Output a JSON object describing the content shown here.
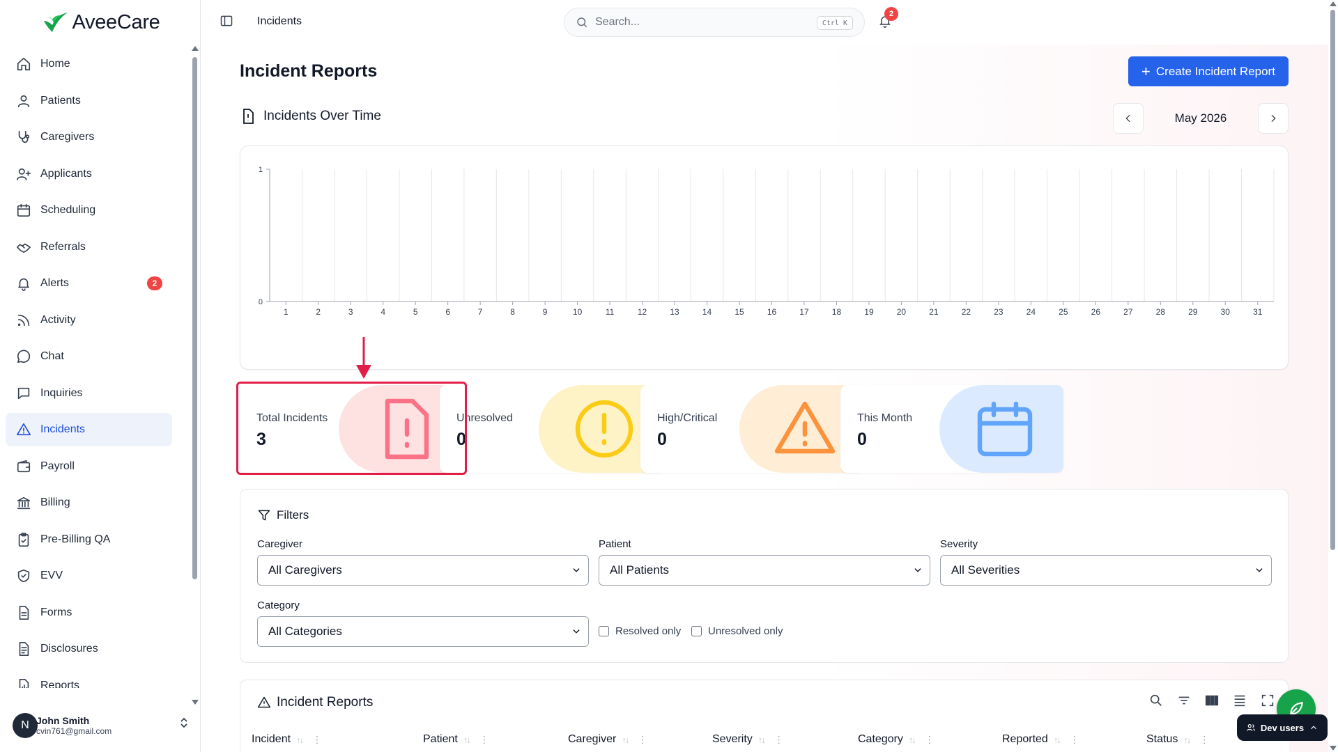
{
  "app": {
    "logo_text": "AveeCare"
  },
  "sidebar": {
    "items": [
      {
        "label": "Home",
        "icon": "home-icon"
      },
      {
        "label": "Patients",
        "icon": "user-icon"
      },
      {
        "label": "Caregivers",
        "icon": "stethoscope-icon"
      },
      {
        "label": "Applicants",
        "icon": "user-plus-icon"
      },
      {
        "label": "Scheduling",
        "icon": "calendar-icon"
      },
      {
        "label": "Referrals",
        "icon": "handshake-icon"
      },
      {
        "label": "Alerts",
        "icon": "bell-icon",
        "badge": "2"
      },
      {
        "label": "Activity",
        "icon": "rss-icon"
      },
      {
        "label": "Chat",
        "icon": "message-circle-icon"
      },
      {
        "label": "Inquiries",
        "icon": "message-square-icon"
      },
      {
        "label": "Incidents",
        "icon": "warning-triangle-icon",
        "active": true
      },
      {
        "label": "Payroll",
        "icon": "wallet-icon"
      },
      {
        "label": "Billing",
        "icon": "bank-icon"
      },
      {
        "label": "Pre-Billing QA",
        "icon": "clipboard-check-icon"
      },
      {
        "label": "EVV",
        "icon": "shield-check-icon"
      },
      {
        "label": "Forms",
        "icon": "file-text-icon"
      },
      {
        "label": "Disclosures",
        "icon": "file-list-icon"
      },
      {
        "label": "Reports",
        "icon": "file-chart-icon"
      }
    ],
    "user": {
      "initial": "N",
      "name": "John Smith",
      "email": "cvin761@gmail.com"
    }
  },
  "header": {
    "breadcrumb": "Incidents",
    "search_placeholder": "Search...",
    "search_shortcut": "Ctrl K",
    "notification_count": "2"
  },
  "main": {
    "page_title": "Incident Reports",
    "create_button": "Create Incident Report",
    "chart_title": "Incidents Over Time",
    "month_label": "May 2026"
  },
  "chart_data": {
    "type": "bar",
    "title": "Incidents Over Time",
    "categories": [
      "1",
      "2",
      "3",
      "4",
      "5",
      "6",
      "7",
      "8",
      "9",
      "10",
      "11",
      "12",
      "13",
      "14",
      "15",
      "16",
      "17",
      "18",
      "19",
      "20",
      "21",
      "22",
      "23",
      "24",
      "25",
      "26",
      "27",
      "28",
      "29",
      "30",
      "31"
    ],
    "values": [
      0,
      0,
      0,
      0,
      0,
      0,
      0,
      0,
      0,
      0,
      0,
      0,
      0,
      0,
      0,
      0,
      0,
      0,
      0,
      0,
      0,
      0,
      0,
      0,
      0,
      0,
      0,
      0,
      0,
      0,
      0
    ],
    "yticks": [
      "0",
      "1"
    ],
    "ylim": [
      0,
      1
    ],
    "grid": "vertical"
  },
  "stats": [
    {
      "label": "Total Incidents",
      "value": "3",
      "icon": "file-alert-icon",
      "color": "#fb7185",
      "bg": "#fee2e2"
    },
    {
      "label": "Unresolved",
      "value": "0",
      "icon": "alert-circle-icon",
      "color": "#facc15",
      "bg": "#fef3c7"
    },
    {
      "label": "High/Critical",
      "value": "0",
      "icon": "warning-triangle-icon",
      "color": "#fb923c",
      "bg": "#ffedd5"
    },
    {
      "label": "This Month",
      "value": "0",
      "icon": "calendar-icon",
      "color": "#60a5fa",
      "bg": "#dbeafe"
    }
  ],
  "filters": {
    "title": "Filters",
    "caregiver_label": "Caregiver",
    "caregiver_value": "All Caregivers",
    "patient_label": "Patient",
    "patient_value": "All Patients",
    "severity_label": "Severity",
    "severity_value": "All Severities",
    "category_label": "Category",
    "category_value": "All Categories",
    "resolved_only": "Resolved only",
    "unresolved_only": "Unresolved only"
  },
  "table": {
    "title": "Incident Reports",
    "columns": [
      "Incident",
      "Patient",
      "Caregiver",
      "Severity",
      "Category",
      "Reported",
      "Status"
    ]
  },
  "dev_bar": {
    "label": "Dev users"
  }
}
